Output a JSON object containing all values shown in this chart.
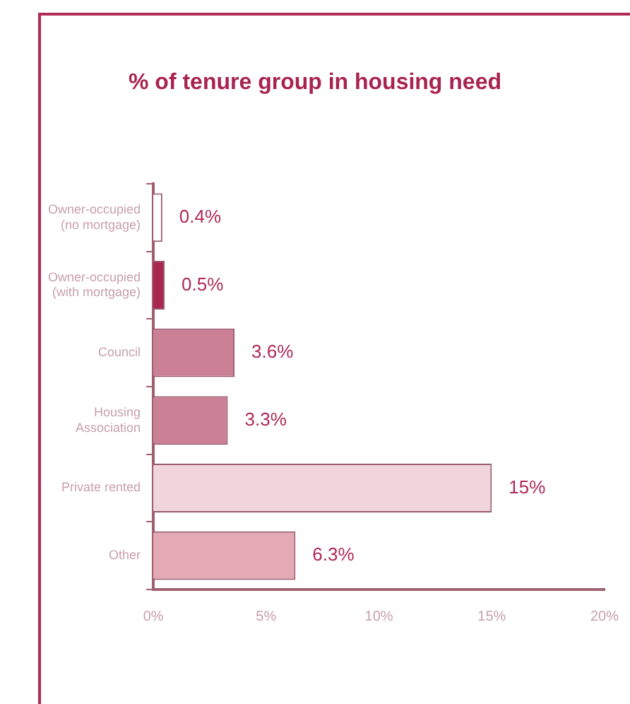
{
  "chart_data": {
    "type": "bar",
    "orientation": "horizontal",
    "title": "% of tenure group in housing need",
    "categories": [
      "Owner-occupied (no mortgage)",
      "Owner-occupied (with mortgage)",
      "Council",
      "Housing Association",
      "Private rented",
      "Other"
    ],
    "values": [
      0.4,
      0.5,
      3.6,
      3.3,
      15,
      6.3
    ],
    "value_labels": [
      "0.4%",
      "0.5%",
      "3.6%",
      "3.3%",
      "15%",
      "6.3%"
    ],
    "colors": [
      "#ffffff",
      "#a8284f",
      "#cc8096",
      "#cc8096",
      "#f0d6dc",
      "#e3aab6"
    ],
    "xlim": [
      0,
      20
    ],
    "xticks": [
      {
        "value": 0,
        "label": "0%"
      },
      {
        "value": 5,
        "label": "5%"
      },
      {
        "value": 10,
        "label": "10%"
      },
      {
        "value": 15,
        "label": "15%"
      },
      {
        "value": 20,
        "label": "20%"
      }
    ],
    "grid": false,
    "legend": false
  }
}
